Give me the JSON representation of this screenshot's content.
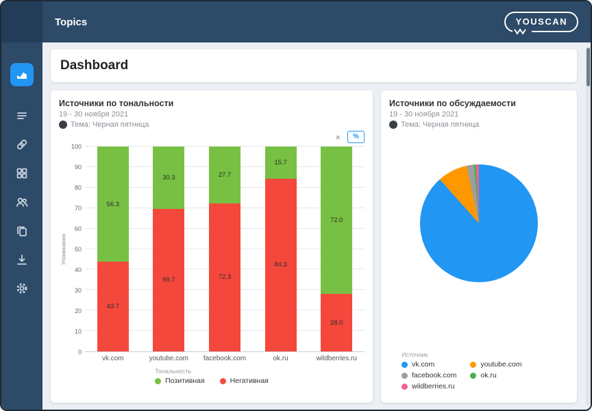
{
  "topbar": {
    "title": "Topics",
    "logo_text": "YOUSCAN"
  },
  "sidebar": {
    "items": [
      {
        "name": "dashboard",
        "icon": "area-chart-icon",
        "active": true
      },
      {
        "name": "mentions-feed",
        "icon": "feed-icon",
        "active": false
      },
      {
        "name": "links",
        "icon": "link-icon",
        "active": false
      },
      {
        "name": "widgets",
        "icon": "grid-icon",
        "active": false
      },
      {
        "name": "audience",
        "icon": "users-icon",
        "active": false
      },
      {
        "name": "reports",
        "icon": "copy-icon",
        "active": false
      },
      {
        "name": "export",
        "icon": "download-icon",
        "active": false
      },
      {
        "name": "settings",
        "icon": "gear-icon",
        "active": false
      }
    ]
  },
  "page": {
    "title": "Dashboard"
  },
  "cards": {
    "tonality": {
      "title": "Источники по тональности",
      "period": "19 - 30 ноября 2021",
      "topic": "Тема: Черная пятница",
      "tools": {
        "close": "×",
        "percent": "%"
      }
    },
    "discussion": {
      "title": "Источники по обсуждаемости",
      "period": "19 - 30 ноября 2021",
      "topic": "Тема: Черная пятница"
    }
  },
  "chart_data": [
    {
      "type": "bar",
      "stacked": true,
      "title": "Источники по тональности",
      "categories": [
        "vk.com",
        "youtube.com",
        "facebook.com",
        "ok.ru",
        "wildberries.ru"
      ],
      "series": [
        {
          "name": "Позитивная",
          "color": "#77c043",
          "values": [
            56.3,
            30.3,
            27.7,
            15.7,
            72.0
          ]
        },
        {
          "name": "Негативная",
          "color": "#f4483c",
          "values": [
            43.7,
            69.7,
            72.3,
            84.3,
            28.0
          ]
        }
      ],
      "ylabel": "Упоминания",
      "ylim": [
        0,
        100
      ],
      "ytick_step": 10,
      "grid": true,
      "legend_title": "Тональность",
      "legend_position": "bottom"
    },
    {
      "type": "pie",
      "title": "Источники по обсуждаемости",
      "legend_title": "Источник",
      "legend_position": "bottom",
      "slices": [
        {
          "label": "vk.com",
          "value": 88.4,
          "color": "#2196f3"
        },
        {
          "label": "youtube.com",
          "value": 8.2,
          "color": "#ff9800"
        },
        {
          "label": "facebook.com",
          "value": 2.0,
          "color": "#9e9e9e"
        },
        {
          "label": "ok.ru",
          "value": 0.6,
          "color": "#4caf50"
        },
        {
          "label": "wildberries.ru",
          "value": 0.8,
          "color": "#f06292"
        }
      ]
    }
  ]
}
